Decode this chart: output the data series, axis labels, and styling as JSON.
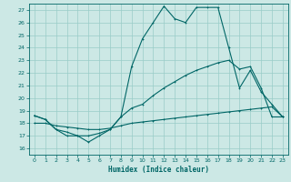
{
  "xlabel": "Humidex (Indice chaleur)",
  "xlim": [
    -0.5,
    23.5
  ],
  "ylim": [
    15.5,
    27.5
  ],
  "xticks": [
    0,
    1,
    2,
    3,
    4,
    5,
    6,
    7,
    8,
    9,
    10,
    11,
    12,
    13,
    14,
    15,
    16,
    17,
    18,
    19,
    20,
    21,
    22,
    23
  ],
  "yticks": [
    16,
    17,
    18,
    19,
    20,
    21,
    22,
    23,
    24,
    25,
    26,
    27
  ],
  "bg_color": "#cce8e5",
  "grid_color": "#99ccc8",
  "line_color": "#006666",
  "line1_x": [
    0,
    1,
    2,
    3,
    4,
    5,
    6,
    7,
    8,
    9,
    10,
    11,
    12,
    13,
    14,
    15,
    16,
    17,
    18,
    19,
    20,
    21,
    22,
    23
  ],
  "line1_y": [
    18.6,
    18.3,
    17.5,
    17.0,
    17.0,
    16.5,
    17.0,
    17.5,
    18.5,
    22.5,
    24.7,
    26.0,
    27.3,
    26.3,
    26.0,
    27.2,
    27.2,
    27.2,
    24.0,
    20.8,
    22.2,
    20.5,
    19.5,
    18.5
  ],
  "line2_x": [
    0,
    1,
    2,
    3,
    4,
    5,
    6,
    7,
    8,
    9,
    10,
    11,
    12,
    13,
    14,
    15,
    16,
    17,
    18,
    19,
    20,
    21,
    22,
    23
  ],
  "line2_y": [
    18.6,
    18.3,
    17.5,
    17.3,
    17.0,
    17.0,
    17.2,
    17.5,
    18.5,
    19.2,
    19.5,
    20.2,
    20.8,
    21.3,
    21.8,
    22.2,
    22.5,
    22.8,
    23.0,
    22.3,
    22.5,
    20.8,
    18.5,
    18.5
  ],
  "line3_x": [
    0,
    1,
    2,
    3,
    4,
    5,
    6,
    7,
    8,
    9,
    10,
    11,
    12,
    13,
    14,
    15,
    16,
    17,
    18,
    19,
    20,
    21,
    22,
    23
  ],
  "line3_y": [
    18.0,
    18.0,
    17.8,
    17.7,
    17.6,
    17.5,
    17.5,
    17.6,
    17.8,
    18.0,
    18.1,
    18.2,
    18.3,
    18.4,
    18.5,
    18.6,
    18.7,
    18.8,
    18.9,
    19.0,
    19.1,
    19.2,
    19.3,
    18.5
  ]
}
